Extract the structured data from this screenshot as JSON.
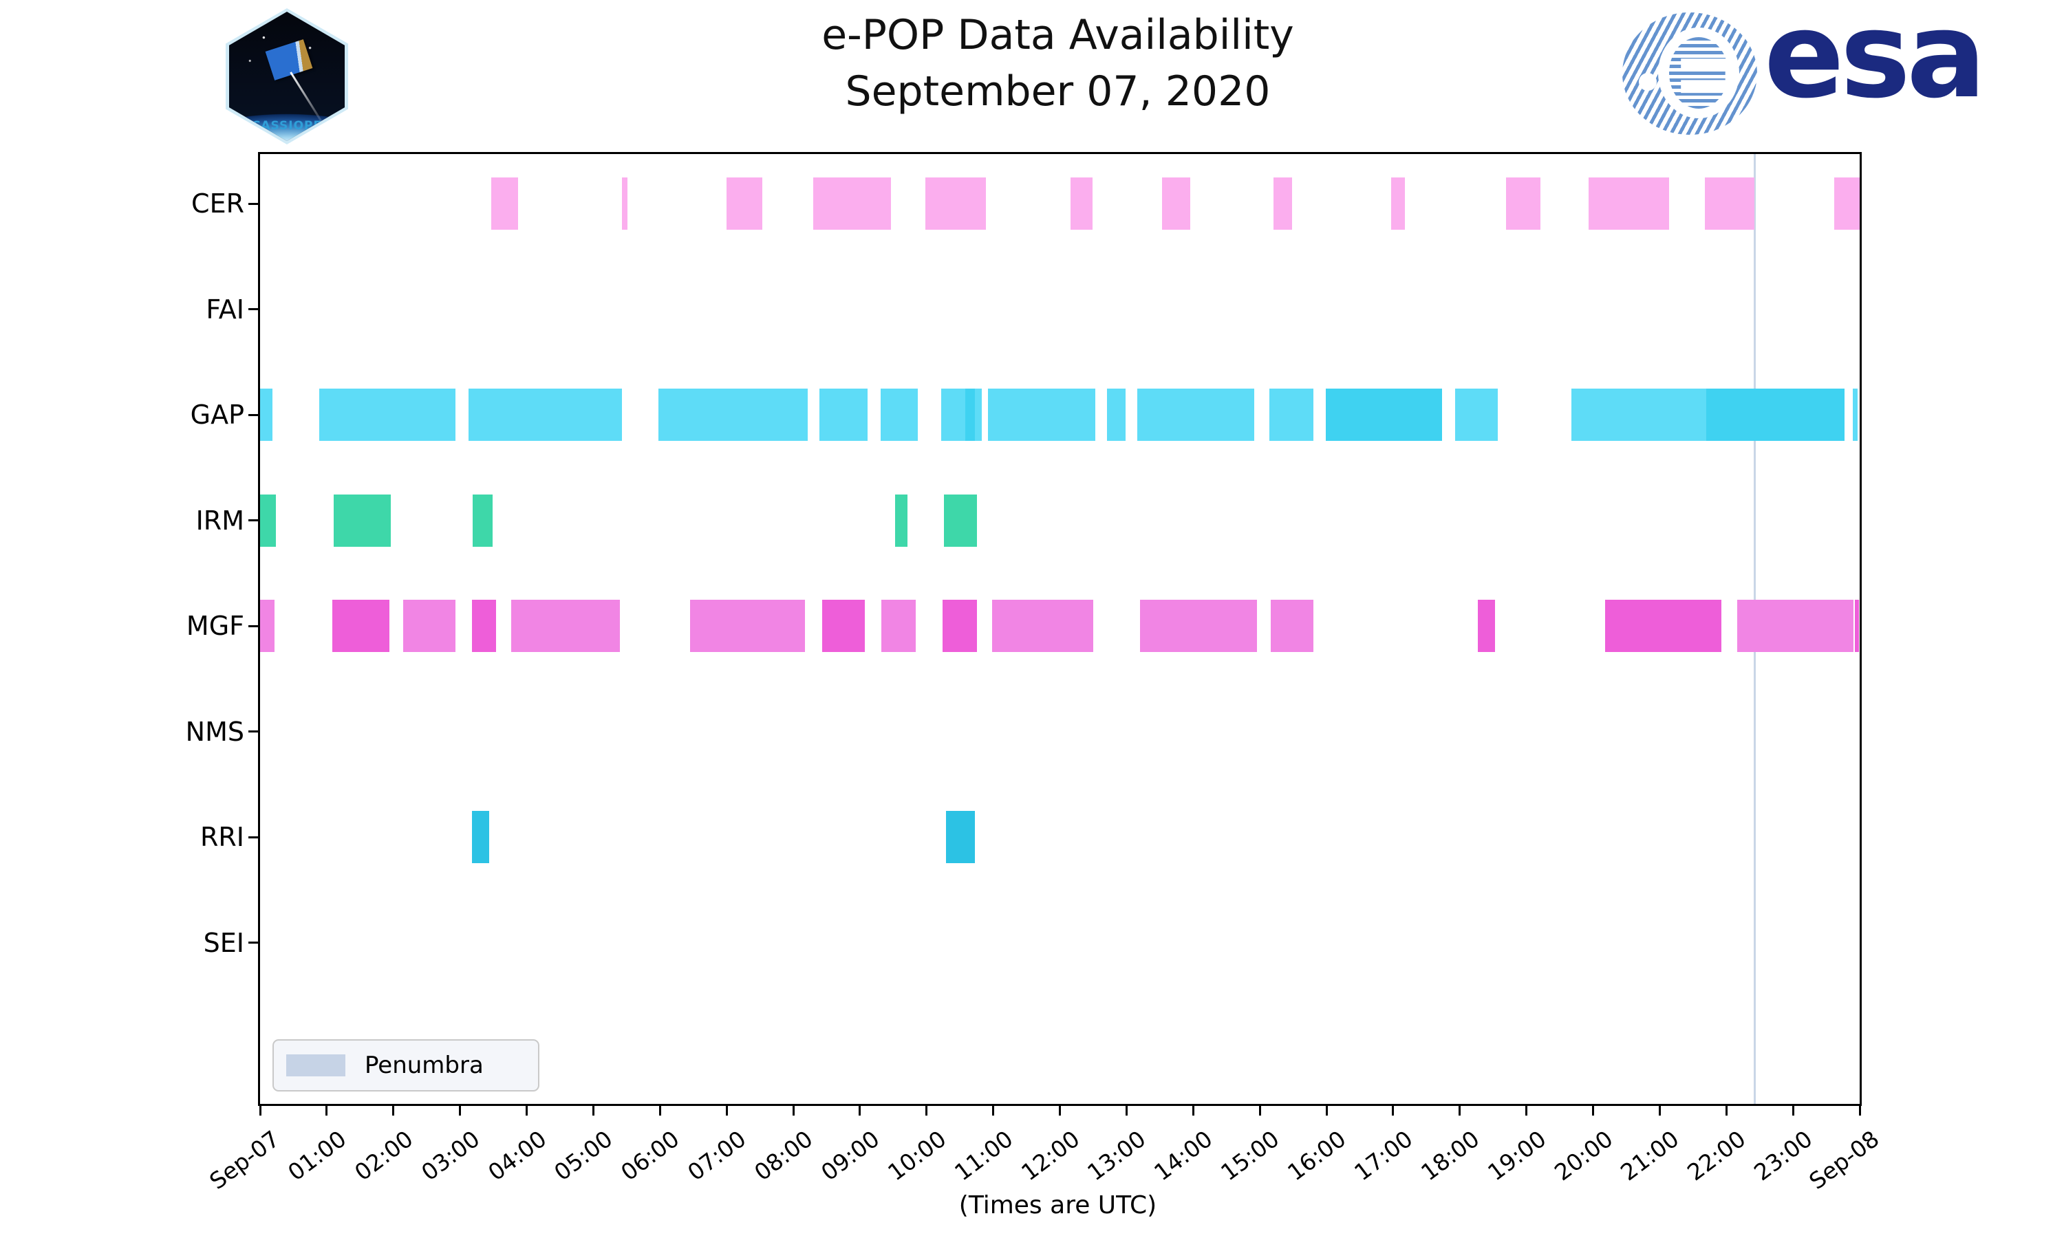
{
  "title": {
    "line1": "e-POP Data Availability",
    "line2": "September 07, 2020"
  },
  "xaxis_label": "(Times are UTC)",
  "legend": {
    "label": "Penumbra",
    "swatch_color": "#c6d3e6"
  },
  "branding": {
    "cassiope_badge_label": "CASSIOPE",
    "esa_wordmark": "esa",
    "esa_navy": "#1b2a80"
  },
  "chart_data": {
    "type": "broken-bar-timeline",
    "title": "e-POP Data Availability September 07, 2020",
    "x_axis": {
      "unit": "hours UTC",
      "range_hours": [
        0,
        24
      ],
      "tick_labels": [
        "Sep-07",
        "01:00",
        "02:00",
        "03:00",
        "04:00",
        "05:00",
        "06:00",
        "07:00",
        "08:00",
        "09:00",
        "10:00",
        "11:00",
        "12:00",
        "13:00",
        "14:00",
        "15:00",
        "16:00",
        "17:00",
        "18:00",
        "19:00",
        "20:00",
        "21:00",
        "22:00",
        "23:00",
        "Sep-08"
      ]
    },
    "y_axis": {
      "labels": [
        "CER",
        "FAI",
        "GAP",
        "IRM",
        "MGF",
        "NMS",
        "RRI",
        "SEI"
      ]
    },
    "penumbra_line": {
      "hour": 22.43,
      "color": "#c9d6e7"
    },
    "grid": "off",
    "legend_position": "lower-left",
    "rows": [
      {
        "instrument": "CER",
        "color": "#fbaeee",
        "color_dark": "#f795e8",
        "segments": [
          {
            "start": 3.47,
            "end": 3.87
          },
          {
            "start": 5.43,
            "end": 5.51
          },
          {
            "start": 7.0,
            "end": 7.54
          },
          {
            "start": 8.3,
            "end": 9.47
          },
          {
            "start": 9.98,
            "end": 10.89
          },
          {
            "start": 12.16,
            "end": 12.49
          },
          {
            "start": 13.53,
            "end": 13.96
          },
          {
            "start": 15.21,
            "end": 15.48
          },
          {
            "start": 16.97,
            "end": 17.18
          },
          {
            "start": 18.69,
            "end": 19.21
          },
          {
            "start": 19.93,
            "end": 21.14
          },
          {
            "start": 21.68,
            "end": 22.42
          },
          {
            "start": 23.62,
            "end": 24.0
          }
        ]
      },
      {
        "instrument": "FAI",
        "color": "#f7c97f",
        "segments": []
      },
      {
        "instrument": "GAP",
        "color": "#5edcf7",
        "color_dark": "#3fd2f1",
        "segments": [
          {
            "start": 0.0,
            "end": 0.19
          },
          {
            "start": 0.89,
            "end": 2.93
          },
          {
            "start": 3.13,
            "end": 5.43
          },
          {
            "start": 5.98,
            "end": 8.22
          },
          {
            "start": 8.39,
            "end": 9.11
          },
          {
            "start": 9.31,
            "end": 9.87
          },
          {
            "start": 10.22,
            "end": 10.58
          },
          {
            "start": 10.58,
            "end": 10.72,
            "shade": "dark"
          },
          {
            "start": 10.72,
            "end": 10.83
          },
          {
            "start": 10.92,
            "end": 12.53
          },
          {
            "start": 12.71,
            "end": 12.99
          },
          {
            "start": 13.16,
            "end": 14.92
          },
          {
            "start": 15.14,
            "end": 15.8
          },
          {
            "start": 15.99,
            "end": 17.73,
            "shade": "dark"
          },
          {
            "start": 17.93,
            "end": 18.57
          },
          {
            "start": 19.67,
            "end": 21.7
          },
          {
            "start": 21.7,
            "end": 23.77,
            "shade": "dark"
          },
          {
            "start": 23.9,
            "end": 23.97
          }
        ]
      },
      {
        "instrument": "IRM",
        "color": "#3ed7a9",
        "segments": [
          {
            "start": 0.0,
            "end": 0.24
          },
          {
            "start": 1.1,
            "end": 1.96
          },
          {
            "start": 3.19,
            "end": 3.49
          },
          {
            "start": 9.53,
            "end": 9.71
          },
          {
            "start": 10.26,
            "end": 10.76
          }
        ]
      },
      {
        "instrument": "MGF",
        "color": "#f185e4",
        "color_dark": "#ee5ed9",
        "segments": [
          {
            "start": 0.0,
            "end": 0.22
          },
          {
            "start": 1.08,
            "end": 1.94,
            "shade": "dark"
          },
          {
            "start": 2.15,
            "end": 2.93
          },
          {
            "start": 3.18,
            "end": 3.54,
            "shade": "dark"
          },
          {
            "start": 3.77,
            "end": 5.4
          },
          {
            "start": 6.45,
            "end": 8.18
          },
          {
            "start": 8.43,
            "end": 9.07,
            "shade": "dark"
          },
          {
            "start": 9.32,
            "end": 9.84
          },
          {
            "start": 10.24,
            "end": 10.76,
            "shade": "dark"
          },
          {
            "start": 10.98,
            "end": 12.5
          },
          {
            "start": 13.2,
            "end": 14.96
          },
          {
            "start": 15.16,
            "end": 15.8
          },
          {
            "start": 18.27,
            "end": 18.53,
            "shade": "dark"
          },
          {
            "start": 20.18,
            "end": 21.92,
            "shade": "dark"
          },
          {
            "start": 22.16,
            "end": 23.91
          },
          {
            "start": 23.93,
            "end": 23.99,
            "shade": "dark"
          }
        ]
      },
      {
        "instrument": "NMS",
        "color": "#9ad0f5",
        "segments": []
      },
      {
        "instrument": "RRI",
        "color": "#2cc2e4",
        "segments": [
          {
            "start": 3.18,
            "end": 3.44
          },
          {
            "start": 10.29,
            "end": 10.73
          }
        ]
      },
      {
        "instrument": "SEI",
        "color": "#c0b4f0",
        "segments": []
      }
    ]
  }
}
